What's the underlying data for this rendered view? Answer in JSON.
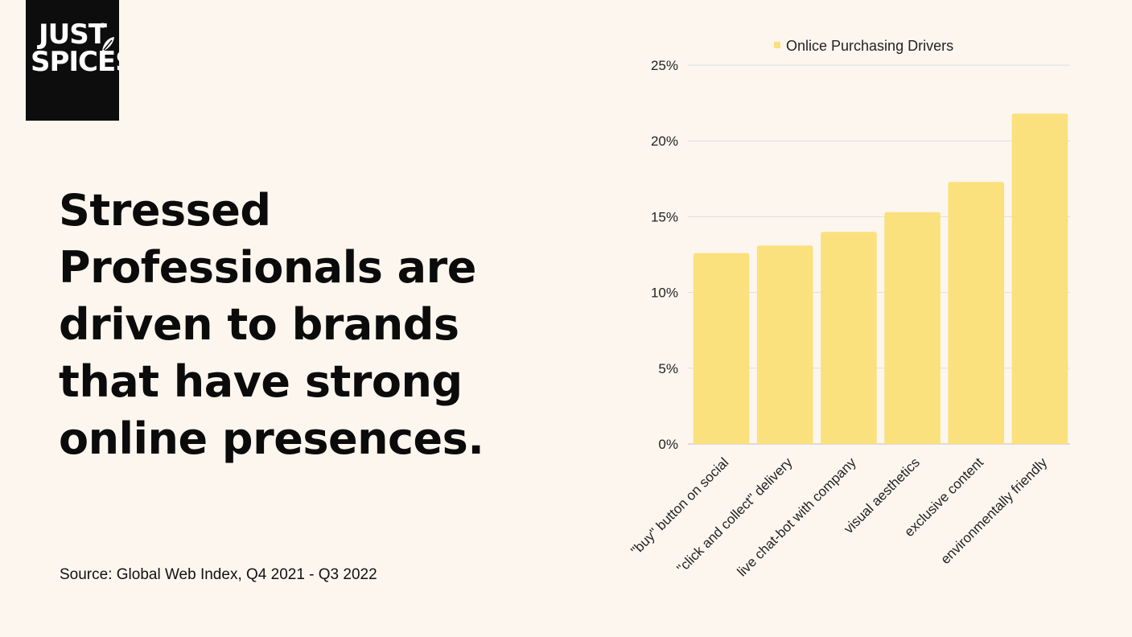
{
  "logo": {
    "line1": "JUST",
    "line2": "SPICES",
    "mark": "®"
  },
  "headline": "Stressed Professionals are driven to brands that have strong online presences.",
  "source": "Source: Global Web Index, Q4 2021 - Q3 2022",
  "colors": {
    "background": "#fdf6ef",
    "bar": "#fbe17e",
    "grid": "#dddddd",
    "logo_bg": "#0d0d0d"
  },
  "chart_data": {
    "type": "bar",
    "title": "",
    "legend": [
      "Onlice Purchasing Drivers"
    ],
    "legend_position": "top",
    "categories": [
      "\"buy\" button on social",
      "\"click and collect\" delivery",
      "live chat-bot with company",
      "visual aesthetics",
      "exclusive content",
      "environmentally friendly"
    ],
    "series": [
      {
        "name": "Onlice Purchasing Drivers",
        "values": [
          12.6,
          13.1,
          14.0,
          15.3,
          17.3,
          21.8
        ]
      }
    ],
    "ylim": [
      0,
      25
    ],
    "yticks": [
      0,
      5,
      10,
      15,
      20,
      25
    ],
    "ytick_labels": [
      "0%",
      "5%",
      "10%",
      "15%",
      "20%",
      "25%"
    ],
    "xlabel": "",
    "ylabel": "",
    "grid": true
  }
}
